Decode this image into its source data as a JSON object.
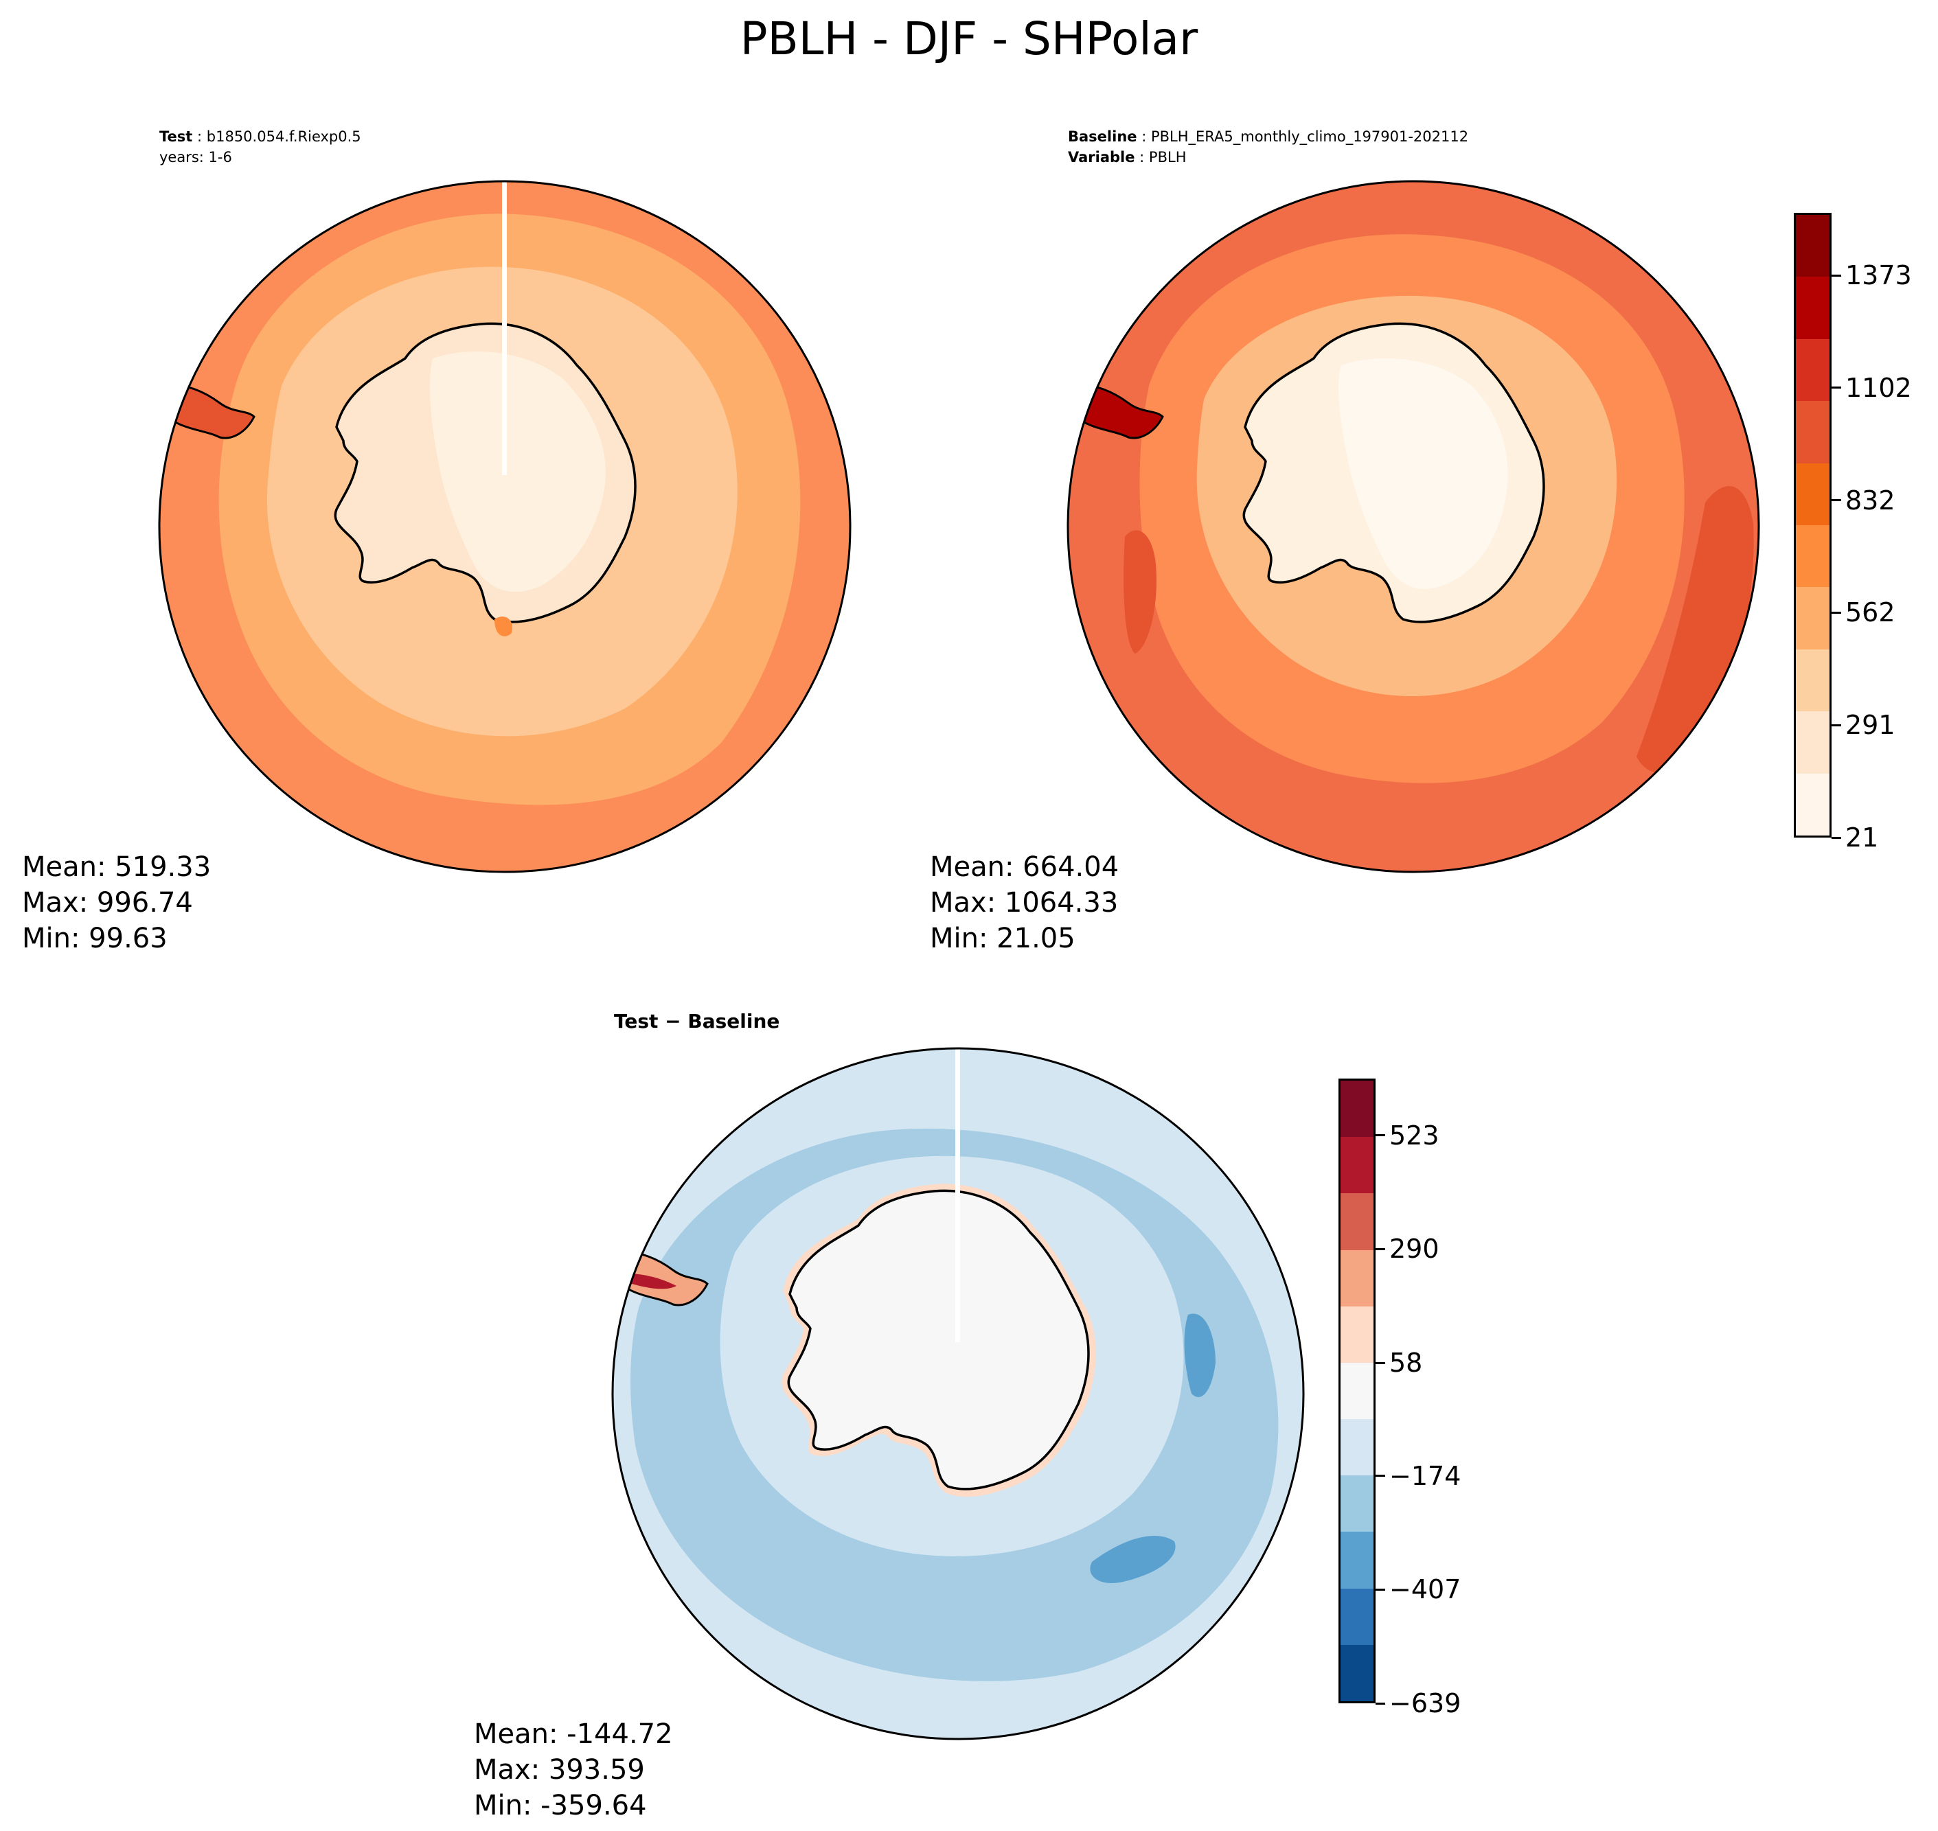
{
  "title": "PBLH - DJF - SHPolar",
  "panels": {
    "test": {
      "header_line1_label": "Test",
      "header_line1_value": "b1850.054.f.Riexp0.5",
      "header_line2": "years: 1-6",
      "stats": {
        "mean": "Mean: 519.33",
        "max": "Max: 996.74",
        "min": "Min: 99.63"
      }
    },
    "baseline": {
      "header_line1_label": "Baseline",
      "header_line1_value": "PBLH_ERA5_monthly_climo_197901-202112",
      "header_line2_label": "Variable",
      "header_line2_value": "PBLH",
      "stats": {
        "mean": "Mean: 664.04",
        "max": "Max: 1064.33",
        "min": "Min: 21.05"
      }
    },
    "difference": {
      "title_left": "Test",
      "title_op": " − ",
      "title_right": "Baseline",
      "stats": {
        "mean": "Mean: -144.72",
        "max": "Max: 393.59",
        "min": "Min: -359.64"
      }
    }
  },
  "colorbars": {
    "main": {
      "ticks": [
        "21",
        "291",
        "562",
        "832",
        "1102",
        "1373"
      ],
      "colors": [
        "#fff5eb",
        "#fee6ce",
        "#fdd0a2",
        "#fdae6b",
        "#fd8d3c",
        "#f16913",
        "#e5532f",
        "#d7301f",
        "#b30000",
        "#8b0000"
      ]
    },
    "diff": {
      "ticks": [
        "−639",
        "−407",
        "−174",
        "58",
        "290",
        "523"
      ],
      "colors": [
        "#0b4a8a",
        "#2b73b5",
        "#5aa1cf",
        "#9ecae1",
        "#d6e6f3",
        "#f7f7f7",
        "#fddbc7",
        "#f4a582",
        "#d6604d",
        "#b2182b",
        "#800b24"
      ]
    }
  },
  "map_colors": {
    "test_ocean_outer": "#fc8d59",
    "test_ocean_mid": "#fdae6b",
    "test_ocean_inner": "#fdc895",
    "test_land": "#fee6ce",
    "test_interior": "#fff1e0",
    "base_ocean_outer": "#f16d48",
    "base_ocean_mid": "#fd8d52",
    "base_ocean_inner": "#fdbb84",
    "base_land": "#fff1e0",
    "base_interior": "#fff8ef",
    "diff_ocean": "#d4e6f2",
    "diff_ocean_band": "#a6cde3",
    "diff_land": "#f7f7f7",
    "diff_pos": "#fddbc7",
    "diff_strong_neg": "#5aa1cf"
  }
}
